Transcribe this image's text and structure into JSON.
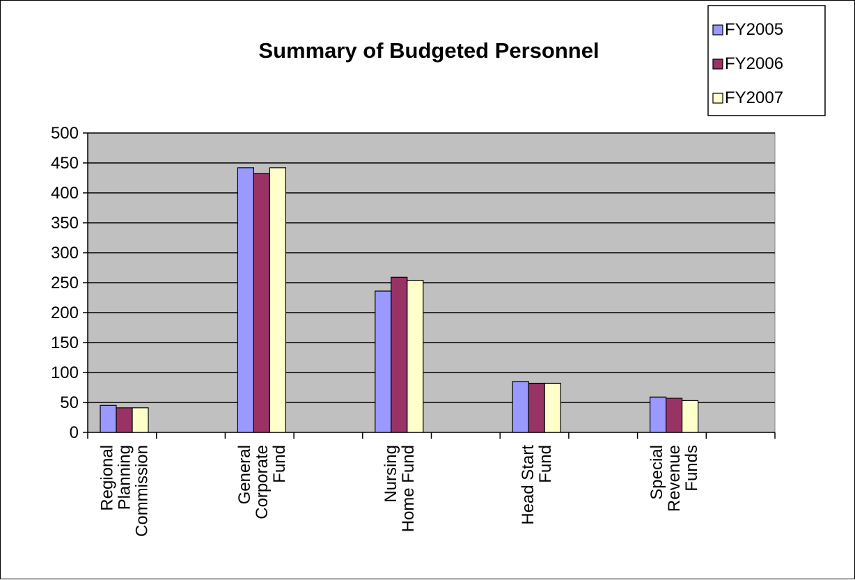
{
  "chart_data": {
    "type": "bar",
    "title": "Summary of Budgeted Personnel",
    "categories": [
      "Regional Planning Commission",
      "General Corporate Fund",
      "Nursing Home Fund",
      "Head Start Fund",
      "Special Revenue Funds"
    ],
    "category_lines": [
      [
        "Regional",
        "Planning",
        "Commission"
      ],
      [
        "General",
        "Corporate",
        "Fund"
      ],
      [
        "Nursing",
        "Home Fund"
      ],
      [
        "Head Start",
        "Fund"
      ],
      [
        "Special",
        "Revenue",
        "Funds"
      ]
    ],
    "series": [
      {
        "name": "FY2005",
        "values": [
          45,
          442,
          236,
          85,
          59
        ]
      },
      {
        "name": "FY2006",
        "values": [
          41,
          432,
          259,
          82,
          57
        ]
      },
      {
        "name": "FY2007",
        "values": [
          41,
          442,
          254,
          82,
          53
        ]
      }
    ],
    "colors": [
      "#9999ff",
      "#993366",
      "#ffffcc"
    ],
    "plot_background": "#c0c0c0",
    "ylim": [
      0,
      500
    ],
    "yticks": [
      "0",
      "50",
      "100",
      "150",
      "200",
      "250",
      "300",
      "350",
      "400",
      "450",
      "500"
    ],
    "grid": true,
    "legend_position": "top-right"
  }
}
